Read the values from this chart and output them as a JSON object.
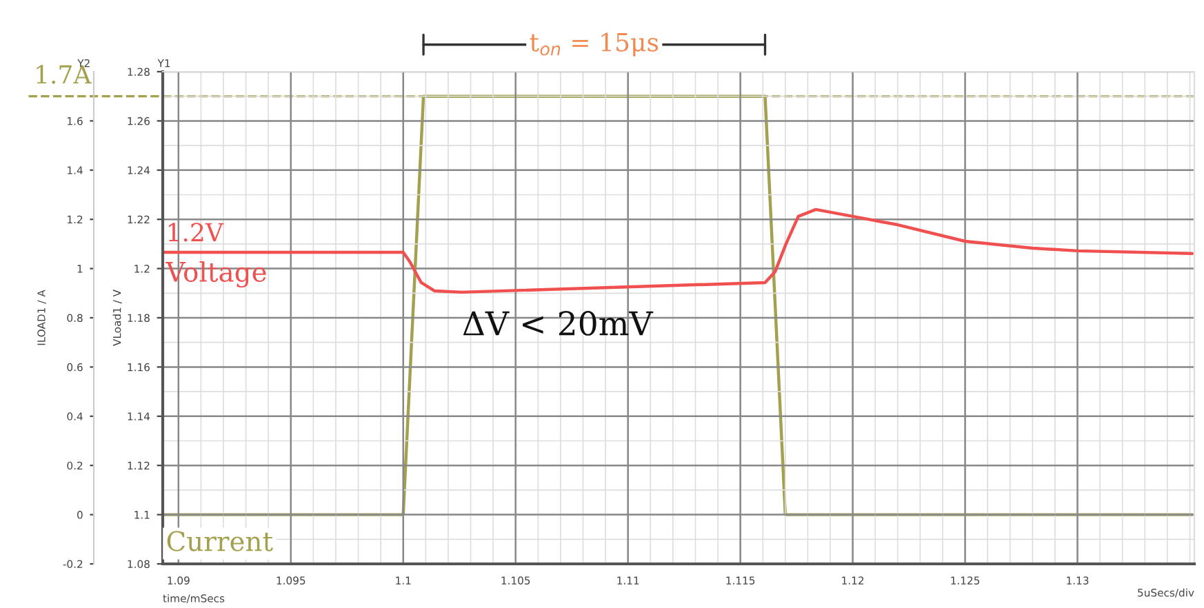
{
  "chart_data": {
    "type": "line",
    "xlabel": "time/mSecs",
    "ylabel": "VLoad1 / V",
    "y2label": "ILOAD1 / A",
    "series": [
      {
        "color": "#f0504f",
        "x": [
          1.0893,
          1.1,
          1.1003,
          1.1008,
          1.1014,
          1.1026,
          1.1161,
          1.11655,
          1.11703,
          1.11758,
          1.11836,
          1.12,
          1.122,
          1.125,
          1.128,
          1.13,
          1.1351
        ],
        "values": [
          1.2066,
          1.2066,
          1.2027,
          1.1943,
          1.1909,
          1.1904,
          1.1943,
          1.1988,
          1.21,
          1.2212,
          1.224,
          1.2212,
          1.2178,
          1.2111,
          1.2083,
          1.2072,
          1.2061
        ]
      },
      {
        "color": "#a3a04e",
        "axis": "y2",
        "x": [
          1.0893,
          1.1,
          1.1009,
          1.1161,
          1.117,
          1.1351
        ],
        "values": [
          0,
          0,
          1.7,
          1.7,
          0,
          0
        ]
      }
    ],
    "xlim": [
      1.0893,
      1.1352
    ],
    "xticks": [
      1.09,
      1.095,
      1.1,
      1.105,
      1.11,
      1.115,
      1.12,
      1.125,
      1.13
    ],
    "ylim": [
      1.08,
      1.28
    ],
    "yticks": [
      1.08,
      1.1,
      1.12,
      1.14,
      1.16,
      1.18,
      1.2,
      1.22,
      1.24,
      1.26,
      1.28
    ],
    "y2lim": [
      -0.2,
      1.8
    ],
    "y2ticks": [
      -0.2,
      0,
      0.2,
      0.4,
      0.6,
      0.8,
      1,
      1.2,
      1.4,
      1.6
    ],
    "grid": true,
    "line_style": "solid",
    "marker": "none",
    "ref_lines": [
      {
        "axis": "y2",
        "value": 1.7,
        "label": "1.7A",
        "color": "#a3a04e",
        "line_style": "dashed"
      }
    ],
    "annotations": [
      "t$_{on}$ = 15μs",
      "1.2V",
      "Voltage",
      "ΔV < 20mV",
      "Current",
      "Y1",
      "Y2",
      "5uSecs/div"
    ]
  }
}
